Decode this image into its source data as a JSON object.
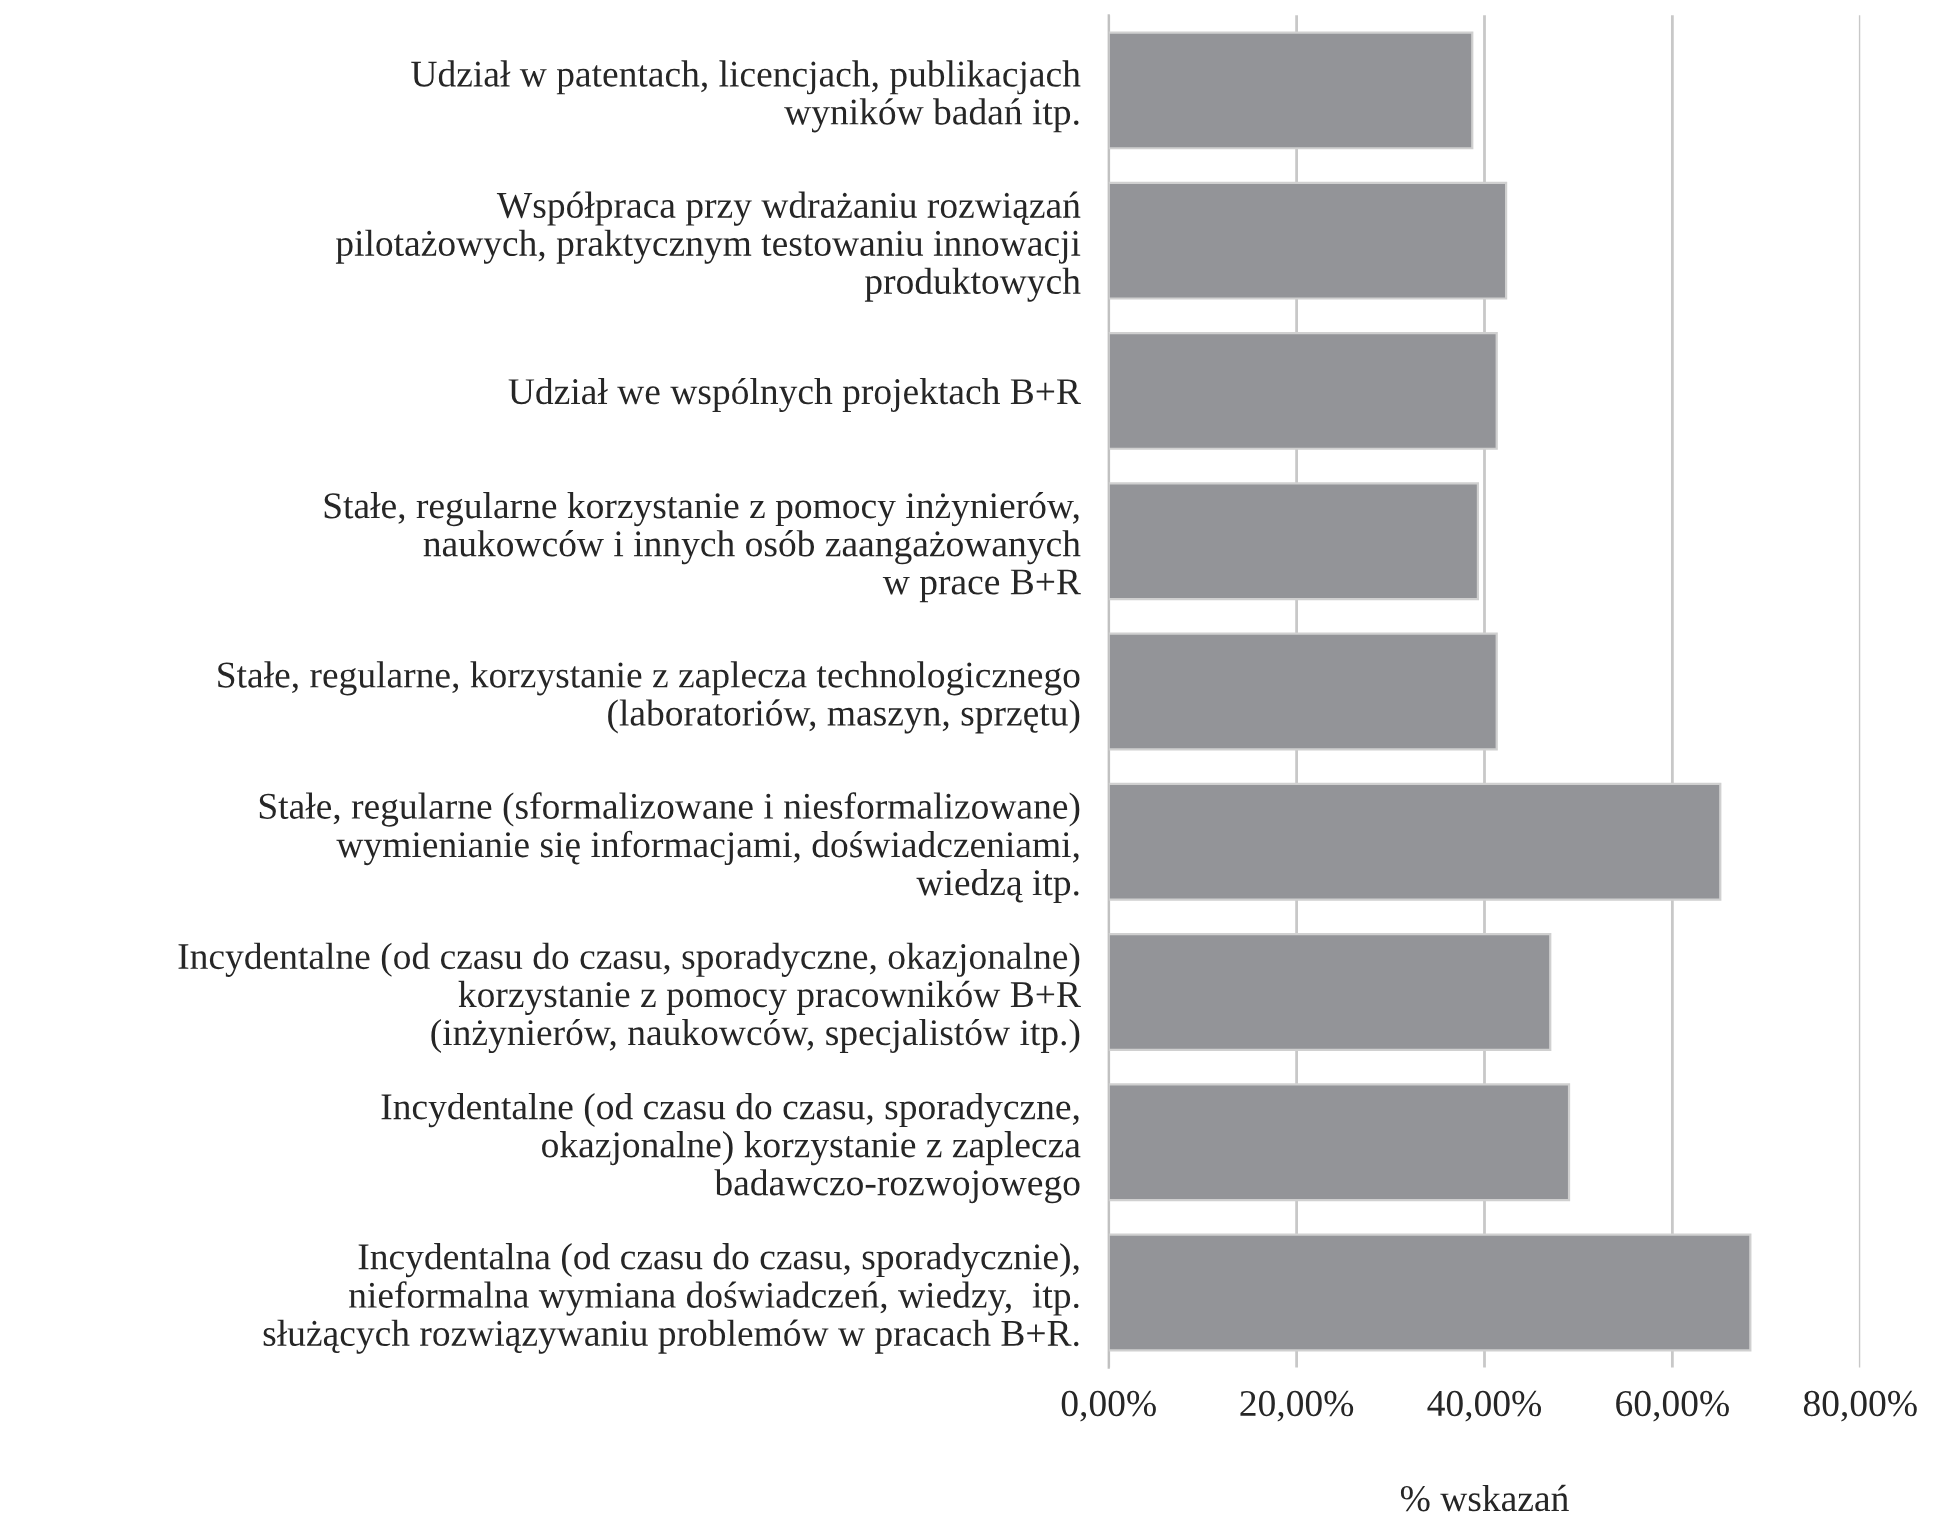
{
  "chart_data": {
    "type": "bar",
    "orientation": "horizontal",
    "xlabel": "% wskazań",
    "categories": [
      "Udział w patentach, licencjach, publikacjach\nwyników badań itp.",
      "Współpraca przy wdrażaniu rozwiązań\npilotażowych, praktycznym testowaniu innowacji\nproduktowych",
      "Udział we wspólnych projektach B+R",
      "Stałe, regularne korzystanie z pomocy inżynierów,\nnaukowców i innych osób zaangażowanych\nw prace B+R",
      "Stałe, regularne, korzystanie z zaplecza technologicznego\n(laboratoriów, maszyn, sprzętu)",
      "Stałe, regularne (sformalizowane i niesformalizowane)\nwymienianie się informacjami, doświadczeniami,\nwiedzą itp.",
      "Incydentalne (od czasu do czasu, sporadyczne, okazjonalne)\nkorzystanie z pomocy pracowników B+R\n(inżynierów, naukowców, specjalistów itp.)",
      "Incydentalne (od czasu do czasu, sporadyczne,\nokazjonalne) korzystanie z zaplecza\nbadawczo-rozwojowego",
      "Incydentalna (od czasu do czasu, sporadycznie),\nnieformalna wymiana doświadczeń, wiedzy,  itp.\nsłużących rozwiązywaniu problemów w pracach B+R."
    ],
    "values": [
      38.7,
      42.3,
      41.3,
      39.3,
      41.3,
      65.1,
      47.0,
      49.0,
      68.3
    ],
    "color": "#939498",
    "xlim": [
      0,
      80
    ],
    "xticks": [
      {
        "value": 0,
        "label": "0,00%"
      },
      {
        "value": 20,
        "label": "20,00%"
      },
      {
        "value": 40,
        "label": "40,00%"
      },
      {
        "value": 60,
        "label": "60,00%"
      },
      {
        "value": 80,
        "label": "80,00%"
      }
    ],
    "grid": "x"
  }
}
